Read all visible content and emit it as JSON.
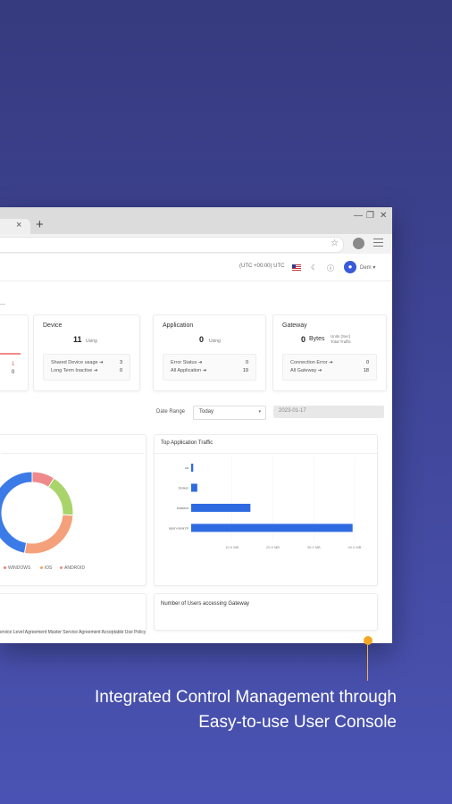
{
  "browser": {
    "new_tab_symbol": "+",
    "tab_close_symbol": "×",
    "controls": {
      "minimize": "—",
      "restore": "❐",
      "close": "✕"
    }
  },
  "header": {
    "timezone": "(UTC +00:00) UTC",
    "user_name": "Dem"
  },
  "page_title": "...",
  "cards": {
    "device": {
      "title": "Device",
      "value": "11",
      "value_unit": "Using",
      "rows": [
        {
          "label": "Shared Device usage ➔",
          "value": "3"
        },
        {
          "label": "Long Term Inactive ➔",
          "value": "0"
        }
      ]
    },
    "application": {
      "title": "Application",
      "value": "0",
      "value_unit": "Using",
      "rows": [
        {
          "label": "Error Status ➔",
          "value": "0"
        },
        {
          "label": "All Application ➔",
          "value": "19"
        }
      ]
    },
    "gateway": {
      "title": "Gateway",
      "value": "0",
      "value_unit": "Bytes",
      "side_note_1": "Units (Sec)",
      "side_note_2": "Total Traffic",
      "rows": [
        {
          "label": "Connection Error ➔",
          "value": "0"
        },
        {
          "label": "All Gateway ➔",
          "value": "18"
        }
      ]
    },
    "left_partial": {
      "row1_value": "1",
      "row2_value": "0"
    }
  },
  "date_range": {
    "label": "Date Range",
    "selected": "Today",
    "date_value": "2023-01-17"
  },
  "donut": {
    "legend": [
      {
        "label": "WINDOWS",
        "color": "#f07a6a"
      },
      {
        "label": "iOS",
        "color": "#f4a261"
      },
      {
        "label": "ANDROID",
        "color": "#f08a7a"
      }
    ]
  },
  "top_app_traffic": {
    "title": "Top Application Traffic"
  },
  "users_gateway": {
    "title": "Number of Users accessing Gateway"
  },
  "footer_links": "ervice Level Agreement   Master Service Agreement   Acceptable Use Policy",
  "chart_data": [
    {
      "type": "pie",
      "title": "",
      "slices": [
        {
          "label": "pink",
          "value": 9,
          "color": "#f08a8a"
        },
        {
          "label": "green",
          "value": 17,
          "color": "#a9d46b"
        },
        {
          "label": "orange",
          "value": 27,
          "color": "#f4a07a"
        },
        {
          "label": "blue",
          "value": 47,
          "color": "#3b7be8"
        }
      ]
    },
    {
      "type": "bar",
      "orientation": "horizontal",
      "title": "Top Application Traffic",
      "categories": [
        "ca",
        "broker",
        "bastion",
        "open-search"
      ],
      "values": [
        0.5,
        1.5,
        14.5,
        39.5
      ],
      "xlim": [
        0,
        40
      ],
      "tick_labels": [
        "10.0 MB",
        "20.0 MB",
        "30.0 MB",
        "40.0 MB"
      ],
      "grid": true
    }
  ],
  "caption": {
    "line1": "Integrated Control Management through",
    "line2": "Easy-to-use User Console"
  }
}
